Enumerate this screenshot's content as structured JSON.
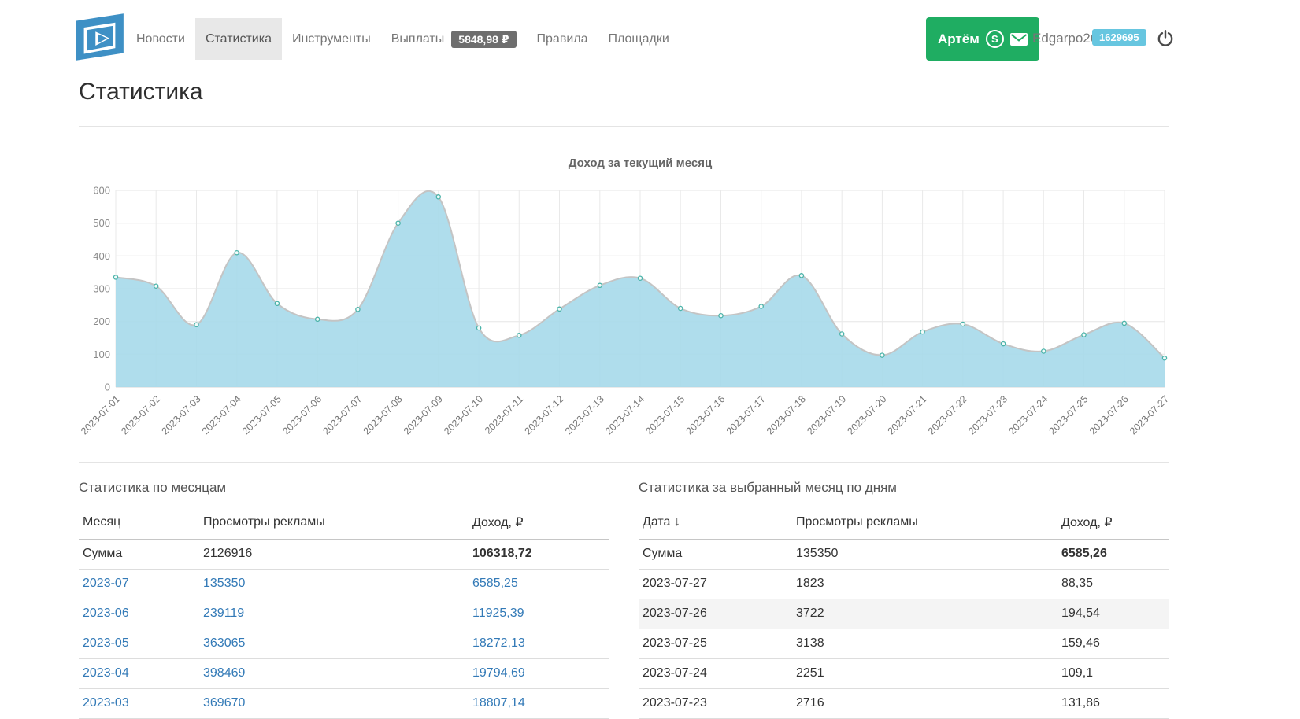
{
  "page_title": "Статистика",
  "header": {
    "nav": [
      {
        "label": "Новости"
      },
      {
        "label": "Статистика",
        "active": true
      },
      {
        "label": "Инструменты"
      },
      {
        "label": "Выплаты",
        "badge": "5848,98 ₽"
      },
      {
        "label": "Правила"
      },
      {
        "label": "Площадки"
      }
    ],
    "manager": {
      "name": "Артём"
    },
    "user": {
      "name": "Edgarpo26",
      "id": "1629695"
    }
  },
  "colors": {
    "logo_blue": "#3e90c5",
    "link_blue": "#337ab7",
    "manager_green": "#1fad62",
    "payout_badge_gray": "#6e6e6e",
    "id_badge_blue": "#67c6e0",
    "chart_fill": "#a6d9ea",
    "chart_line": "#c4c4c4",
    "chart_marker": "#4ab3a9"
  },
  "chart_data": {
    "type": "area",
    "title": "Доход за текущий месяц",
    "x": [
      "2023-07-01",
      "2023-07-02",
      "2023-07-03",
      "2023-07-04",
      "2023-07-05",
      "2023-07-06",
      "2023-07-07",
      "2023-07-08",
      "2023-07-09",
      "2023-07-10",
      "2023-07-11",
      "2023-07-12",
      "2023-07-13",
      "2023-07-14",
      "2023-07-15",
      "2023-07-16",
      "2023-07-17",
      "2023-07-18",
      "2023-07-19",
      "2023-07-20",
      "2023-07-21",
      "2023-07-22",
      "2023-07-23",
      "2023-07-24",
      "2023-07-25",
      "2023-07-26",
      "2023-07-27"
    ],
    "values": [
      335,
      308,
      190,
      410,
      255,
      207,
      237,
      500,
      580,
      180,
      158,
      238,
      310,
      332,
      240,
      218,
      246,
      340,
      162,
      97,
      168,
      192,
      131.86,
      109.1,
      159.46,
      194.54,
      88.35
    ],
    "xlabel": "",
    "ylabel": "",
    "ylim": [
      0,
      600
    ],
    "yticks": [
      0,
      100,
      200,
      300,
      400,
      500,
      600
    ],
    "grid": true,
    "legend": "none"
  },
  "tables": {
    "monthly": {
      "title": "Статистика по месяцам",
      "headers": [
        "Месяц",
        "Просмотры рекламы",
        "Доход, ₽"
      ],
      "sum_row": [
        "Сумма",
        "2126916",
        "106318,72"
      ],
      "rows": [
        [
          "2023-07",
          "135350",
          "6585,25"
        ],
        [
          "2023-06",
          "239119",
          "11925,39"
        ],
        [
          "2023-05",
          "363065",
          "18272,13"
        ],
        [
          "2023-04",
          "398469",
          "19794,69"
        ],
        [
          "2023-03",
          "369670",
          "18807,14"
        ]
      ]
    },
    "daily": {
      "title": "Статистика за выбранный месяц по дням",
      "headers": [
        "Дата",
        "Просмотры рекламы",
        "Доход, ₽"
      ],
      "sort_indicator": "↓",
      "sum_row": [
        "Сумма",
        "135350",
        "6585,26"
      ],
      "highlighted_row": 1,
      "rows": [
        [
          "2023-07-27",
          "1823",
          "88,35"
        ],
        [
          "2023-07-26",
          "3722",
          "194,54"
        ],
        [
          "2023-07-25",
          "3138",
          "159,46"
        ],
        [
          "2023-07-24",
          "2251",
          "109,1"
        ],
        [
          "2023-07-23",
          "2716",
          "131,86"
        ]
      ]
    }
  }
}
